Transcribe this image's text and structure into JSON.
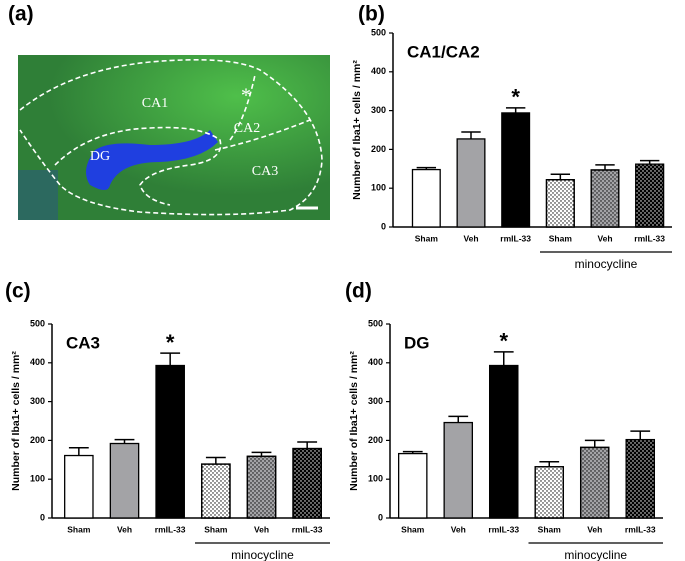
{
  "image": {
    "label": "(a)",
    "regions": [
      "CA1",
      "CA2",
      "CA3",
      "DG"
    ],
    "marker": "*"
  },
  "chart_data": [
    {
      "type": "bar",
      "panel": "(b)",
      "title": "CA1/CA2",
      "y_label": "Number of Iba1+ cells / mm²",
      "categories": [
        "Sham",
        "Veh",
        "rmIL-33",
        "Sham",
        "Veh",
        "rmIL-33"
      ],
      "values": [
        148,
        227,
        294,
        122,
        147,
        162
      ],
      "errors": [
        5,
        18,
        13,
        14,
        13,
        9
      ],
      "significance": [
        null,
        null,
        "*",
        null,
        null,
        null
      ],
      "colors": [
        "#ffffff",
        "#a3a3a6",
        "#000000",
        "#ffffff",
        "#a3a3a6",
        "#000000"
      ],
      "dotted": [
        false,
        false,
        false,
        true,
        true,
        true
      ],
      "group_label": "minocycline",
      "ylim": [
        0,
        500
      ],
      "yticks": [
        0,
        100,
        200,
        300,
        400,
        500
      ]
    },
    {
      "type": "bar",
      "panel": "(c)",
      "title": "CA3",
      "y_label": "Number of Iba1+ cells / mm²",
      "categories": [
        "Sham",
        "Veh",
        "rmIL-33",
        "Sham",
        "Veh",
        "rmIL-33"
      ],
      "values": [
        161,
        192,
        393,
        139,
        159,
        179
      ],
      "errors": [
        20,
        10,
        32,
        17,
        10,
        17
      ],
      "significance": [
        null,
        null,
        "*",
        null,
        null,
        null
      ],
      "colors": [
        "#ffffff",
        "#a3a3a6",
        "#000000",
        "#ffffff",
        "#a3a3a6",
        "#000000"
      ],
      "dotted": [
        false,
        false,
        false,
        true,
        true,
        true
      ],
      "group_label": "minocycline",
      "ylim": [
        0,
        500
      ],
      "yticks": [
        0,
        100,
        200,
        300,
        400,
        500
      ]
    },
    {
      "type": "bar",
      "panel": "(d)",
      "title": "DG",
      "y_label": "Number of Iba1+ cells / mm²",
      "categories": [
        "Sham",
        "Veh",
        "rmIL-33",
        "Sham",
        "Veh",
        "rmIL-33"
      ],
      "values": [
        166,
        246,
        393,
        132,
        182,
        202
      ],
      "errors": [
        5,
        16,
        35,
        13,
        18,
        22
      ],
      "significance": [
        null,
        null,
        "*",
        null,
        null,
        null
      ],
      "colors": [
        "#ffffff",
        "#a3a3a6",
        "#000000",
        "#ffffff",
        "#a3a3a6",
        "#000000"
      ],
      "dotted": [
        false,
        false,
        false,
        true,
        true,
        true
      ],
      "group_label": "minocycline",
      "ylim": [
        0,
        500
      ],
      "yticks": [
        0,
        100,
        200,
        300,
        400,
        500
      ]
    }
  ]
}
